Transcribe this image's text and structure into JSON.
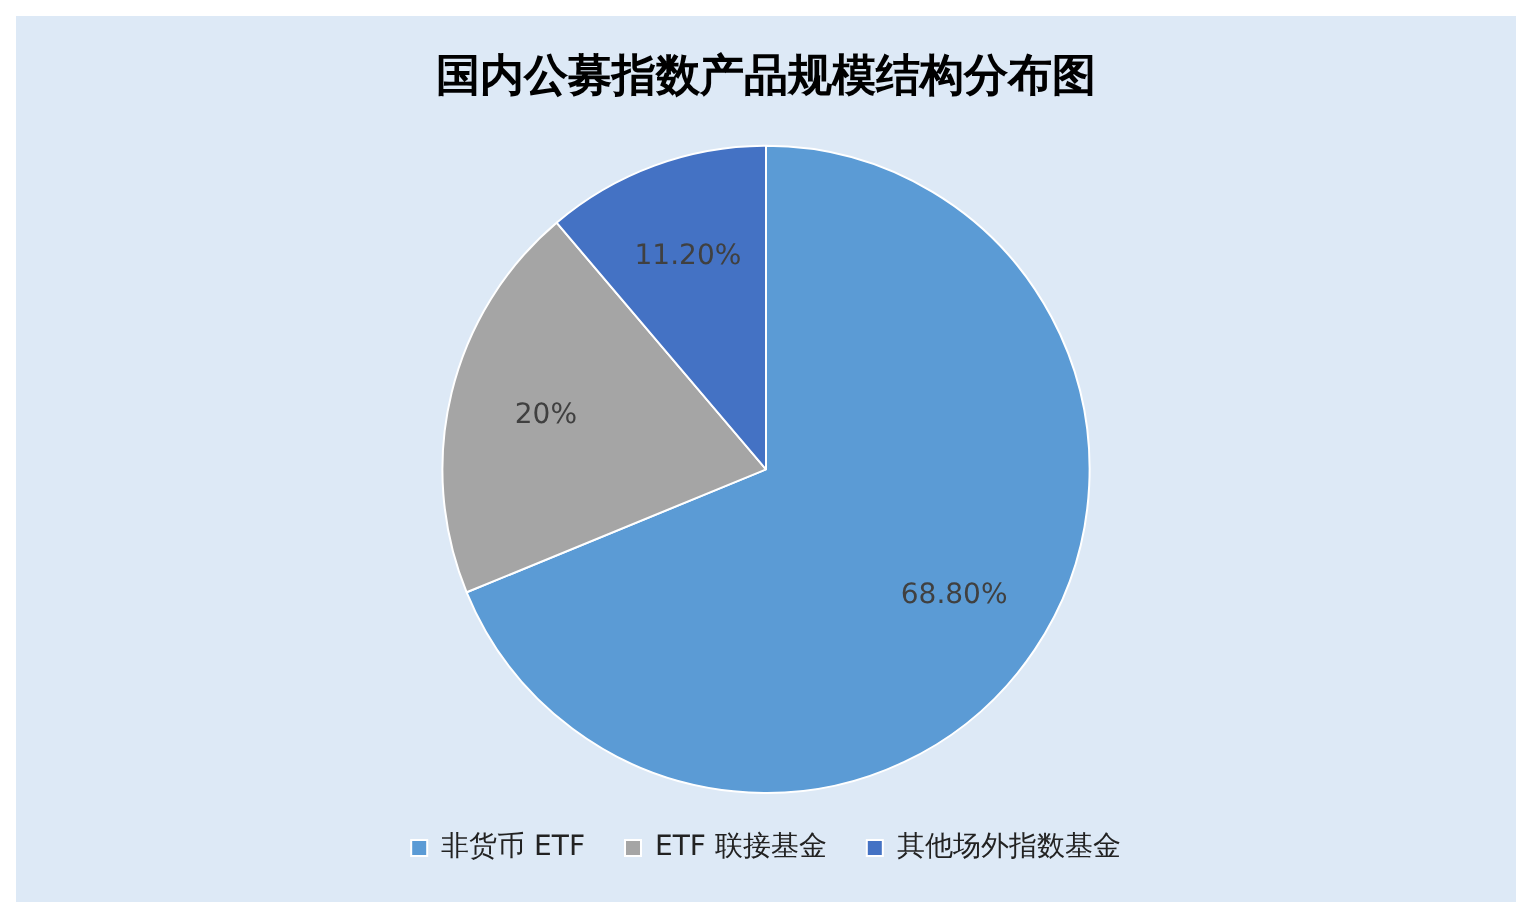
{
  "chart_data": {
    "type": "pie",
    "title": "国内公募指数产品规模结构分布图",
    "categories": [
      "非货币 ETF",
      "ETF 联接基金",
      "其他场外指数基金"
    ],
    "values": [
      68.8,
      20,
      11.2
    ],
    "colors": [
      "#5b9bd5",
      "#a5a5a5",
      "#4472c4"
    ],
    "value_labels": [
      "68.80%",
      "20%",
      "11.20%"
    ],
    "legend": "bottom"
  }
}
